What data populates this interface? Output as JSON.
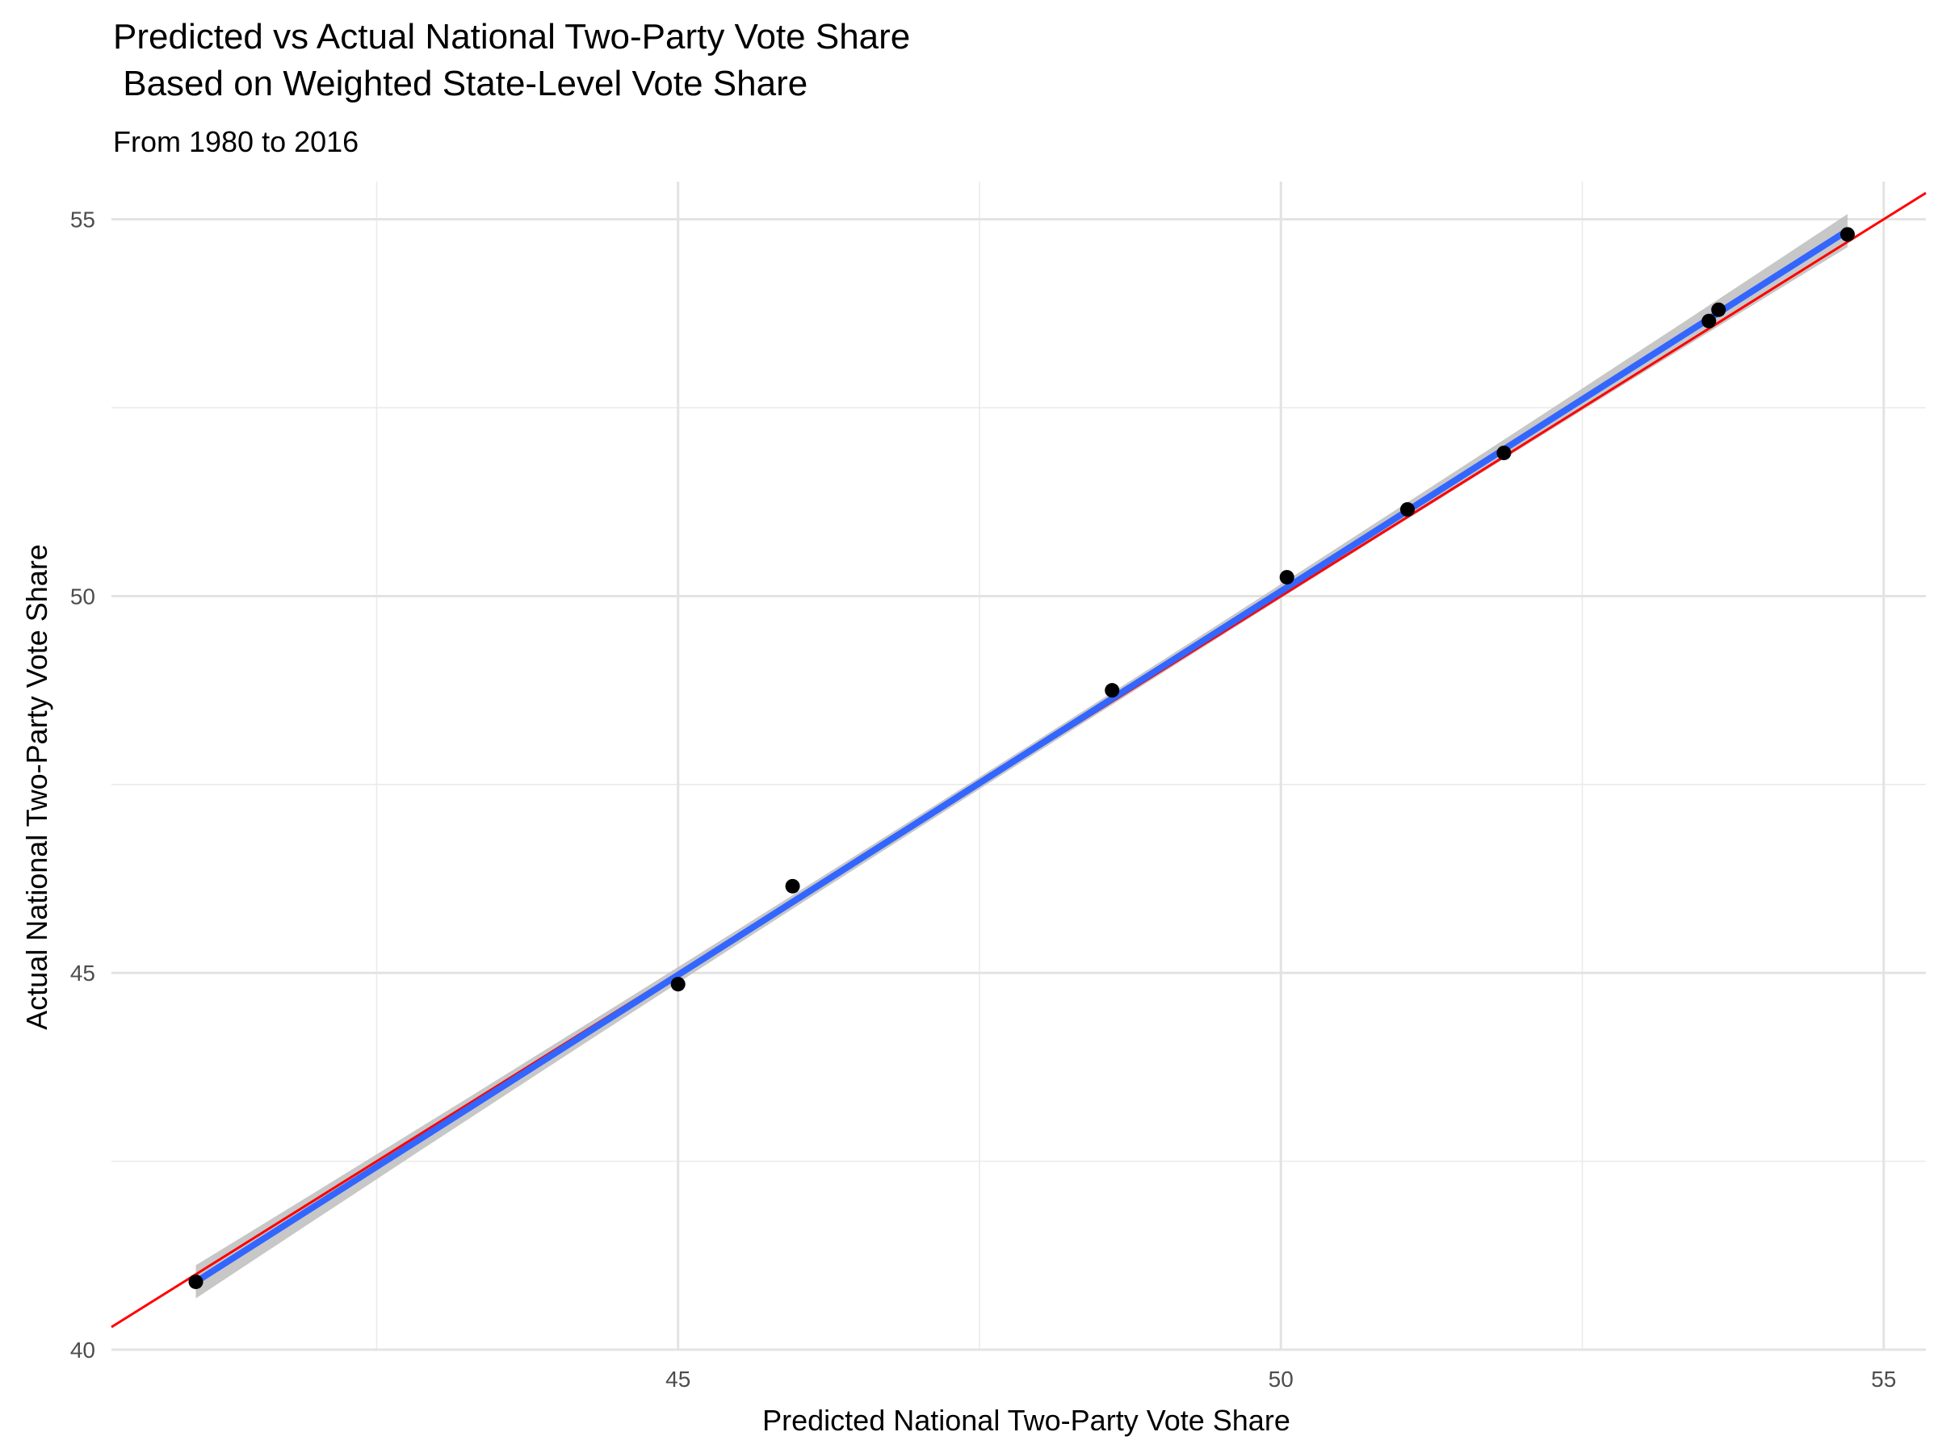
{
  "chart_data": {
    "type": "scatter",
    "title_line1": "Predicted vs Actual National Two-Party Vote Share",
    "title_line2": " Based on Weighted State-Level Vote Share",
    "subtitle": "From 1980 to 2016",
    "xlabel": "Predicted National Two-Party Vote Share",
    "ylabel": "Actual National Two-Party Vote Share",
    "xlim": [
      40.3,
      55.35
    ],
    "ylim": [
      40.0,
      55.5
    ],
    "x_ticks": [
      45,
      50,
      55
    ],
    "x_tick_labels": [
      "45",
      "50",
      "55"
    ],
    "x_minor_ticks": [
      42.5,
      47.5,
      52.5
    ],
    "y_ticks": [
      40,
      45,
      50,
      55
    ],
    "y_tick_labels": [
      "40",
      "45",
      "50",
      "55"
    ],
    "y_minor_ticks": [
      42.5,
      47.5,
      52.5
    ],
    "grid": true,
    "points": {
      "x": [
        41.0,
        45.0,
        45.95,
        48.6,
        50.05,
        51.05,
        51.85,
        53.55,
        53.63,
        54.7
      ],
      "y": [
        40.9,
        44.85,
        46.15,
        48.75,
        50.25,
        51.15,
        51.9,
        53.65,
        53.8,
        54.8
      ]
    },
    "fit_line": {
      "x": [
        41.0,
        54.7
      ],
      "y": [
        40.9,
        54.85
      ],
      "color": "#3366ff",
      "band_color": "#bdbdbd"
    },
    "reference_line": {
      "slope": 1,
      "intercept": 0,
      "color": "#ff0000"
    },
    "point_color": "#000000"
  }
}
